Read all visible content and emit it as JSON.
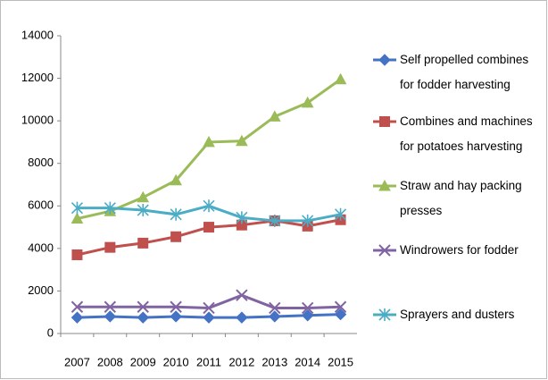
{
  "chart_data": {
    "type": "line",
    "categories": [
      "2007",
      "2008",
      "2009",
      "2010",
      "2011",
      "2012",
      "2013",
      "2014",
      "2015"
    ],
    "ylim": [
      0,
      14000
    ],
    "yticks": [
      0,
      2000,
      4000,
      6000,
      8000,
      10000,
      12000,
      14000
    ],
    "grid": false,
    "legend": "right",
    "series": [
      {
        "name": "Self propelled combines for fodder harvesting",
        "color": "#4472c4",
        "marker": "diamond",
        "values": [
          750,
          800,
          750,
          800,
          750,
          750,
          800,
          850,
          900
        ]
      },
      {
        "name": "Combines and machines for potatoes harvesting",
        "color": "#c0504d",
        "marker": "square",
        "values": [
          3700,
          4050,
          4250,
          4550,
          5000,
          5100,
          5300,
          5050,
          5350
        ]
      },
      {
        "name": "Straw and hay packing presses",
        "color": "#9bbb59",
        "marker": "triangle",
        "values": [
          5400,
          5750,
          6400,
          7200,
          9000,
          9050,
          10200,
          10850,
          11950
        ]
      },
      {
        "name": "Windrowers for fodder",
        "color": "#8064a2",
        "marker": "x",
        "values": [
          1250,
          1250,
          1250,
          1250,
          1200,
          1800,
          1200,
          1200,
          1250
        ]
      },
      {
        "name": "Sprayers and dusters",
        "color": "#4bacc6",
        "marker": "star",
        "values": [
          5900,
          5900,
          5800,
          5600,
          6000,
          5450,
          5300,
          5300,
          5600
        ]
      }
    ]
  }
}
